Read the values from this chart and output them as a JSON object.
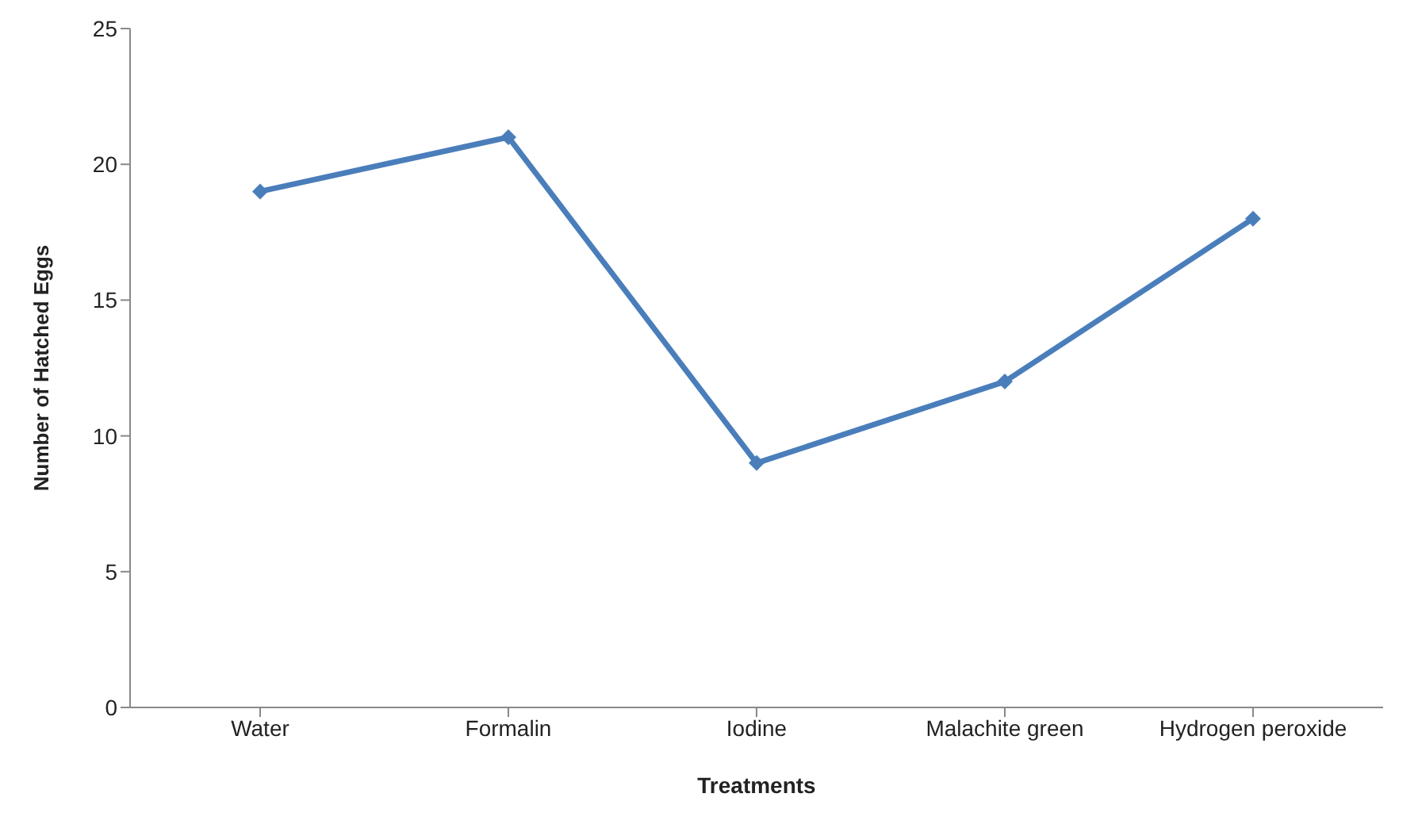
{
  "chart_data": {
    "type": "line",
    "xlabel": "Treatments",
    "ylabel": "Number of Hatched Eggs",
    "categories": [
      "Water",
      "Formalin",
      "Iodine",
      "Malachite green",
      "Hydrogen peroxide"
    ],
    "series": [
      {
        "color": "#4a7ebb",
        "values": [
          19,
          21,
          9,
          12,
          18
        ]
      }
    ],
    "ylim": [
      0,
      25
    ],
    "yticks": [
      0,
      5,
      10,
      15,
      20,
      25
    ],
    "grid": false,
    "legend": false,
    "marker": "diamond",
    "line_style": "solid"
  }
}
